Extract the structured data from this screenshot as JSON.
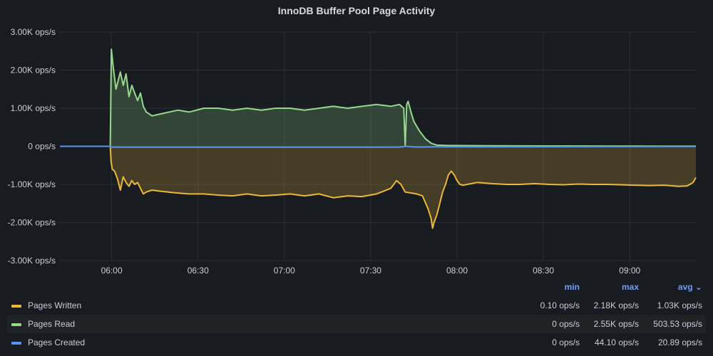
{
  "panel": {
    "title": "InnoDB Buffer Pool Page Activity"
  },
  "chart_data": {
    "type": "area",
    "title": "InnoDB Buffer Pool Page Activity",
    "y_ticks": [
      "3.00K ops/s",
      "2.00K ops/s",
      "1.00K ops/s",
      "0 ops/s",
      "-1.00K ops/s",
      "-2.00K ops/s",
      "-3.00K ops/s"
    ],
    "x_ticks": [
      "06:00",
      "06:30",
      "07:00",
      "07:30",
      "08:00",
      "08:30",
      "09:00"
    ],
    "ylim": [
      -3000,
      3000
    ],
    "x_unit": "minutes after 05:42",
    "xlim": [
      0,
      221
    ],
    "grid": true,
    "series": [
      {
        "name": "Pages Read",
        "color": "#96d98d",
        "sign": 1,
        "points": [
          [
            0,
            0
          ],
          [
            17.5,
            0
          ],
          [
            17.9,
            2550
          ],
          [
            18.5,
            2100
          ],
          [
            19.5,
            1500
          ],
          [
            20.5,
            1800
          ],
          [
            21,
            1950
          ],
          [
            22,
            1600
          ],
          [
            23,
            1900
          ],
          [
            24,
            1300
          ],
          [
            25,
            1600
          ],
          [
            26,
            1400
          ],
          [
            27,
            1200
          ],
          [
            28,
            1400
          ],
          [
            29,
            1050
          ],
          [
            30,
            900
          ],
          [
            32,
            800
          ],
          [
            35,
            850
          ],
          [
            38,
            900
          ],
          [
            41,
            950
          ],
          [
            45,
            900
          ],
          [
            50,
            1000
          ],
          [
            55,
            1000
          ],
          [
            60,
            950
          ],
          [
            65,
            1000
          ],
          [
            70,
            950
          ],
          [
            75,
            1000
          ],
          [
            80,
            1000
          ],
          [
            85,
            950
          ],
          [
            90,
            1000
          ],
          [
            95,
            1050
          ],
          [
            100,
            1000
          ],
          [
            105,
            1050
          ],
          [
            110,
            1100
          ],
          [
            115,
            1050
          ],
          [
            118,
            1100
          ],
          [
            119.5,
            1000
          ],
          [
            120,
            0
          ],
          [
            120.5,
            1100
          ],
          [
            121,
            1180
          ],
          [
            122,
            900
          ],
          [
            123,
            650
          ],
          [
            125,
            400
          ],
          [
            127,
            200
          ],
          [
            129,
            80
          ],
          [
            131,
            30
          ],
          [
            135,
            20
          ],
          [
            150,
            15
          ],
          [
            170,
            10
          ],
          [
            190,
            8
          ],
          [
            210,
            5
          ],
          [
            221,
            5
          ]
        ]
      },
      {
        "name": "Pages Written",
        "color": "#eab839",
        "sign": -1,
        "points": [
          [
            0,
            0
          ],
          [
            17.5,
            0
          ],
          [
            17.8,
            400
          ],
          [
            18.2,
            600
          ],
          [
            19,
            650
          ],
          [
            20,
            850
          ],
          [
            21,
            1150
          ],
          [
            22,
            800
          ],
          [
            23,
            950
          ],
          [
            24,
            1050
          ],
          [
            25,
            900
          ],
          [
            26,
            1000
          ],
          [
            27,
            950
          ],
          [
            28,
            1100
          ],
          [
            29,
            1250
          ],
          [
            30,
            1200
          ],
          [
            32,
            1150
          ],
          [
            35,
            1180
          ],
          [
            40,
            1220
          ],
          [
            45,
            1250
          ],
          [
            50,
            1250
          ],
          [
            55,
            1280
          ],
          [
            60,
            1300
          ],
          [
            65,
            1250
          ],
          [
            70,
            1300
          ],
          [
            75,
            1280
          ],
          [
            80,
            1250
          ],
          [
            85,
            1300
          ],
          [
            90,
            1250
          ],
          [
            95,
            1350
          ],
          [
            100,
            1300
          ],
          [
            105,
            1320
          ],
          [
            110,
            1250
          ],
          [
            115,
            1100
          ],
          [
            117,
            900
          ],
          [
            118.5,
            1000
          ],
          [
            120,
            1200
          ],
          [
            124,
            1250
          ],
          [
            126,
            1300
          ],
          [
            128,
            1650
          ],
          [
            129,
            1900
          ],
          [
            129.5,
            2150
          ],
          [
            130,
            2000
          ],
          [
            131,
            1800
          ],
          [
            132,
            1500
          ],
          [
            133,
            1200
          ],
          [
            134,
            1000
          ],
          [
            135,
            750
          ],
          [
            136,
            650
          ],
          [
            137,
            750
          ],
          [
            138,
            900
          ],
          [
            139,
            1000
          ],
          [
            140,
            1020
          ],
          [
            145,
            950
          ],
          [
            150,
            980
          ],
          [
            155,
            1000
          ],
          [
            160,
            1000
          ],
          [
            165,
            980
          ],
          [
            170,
            1000
          ],
          [
            175,
            1010
          ],
          [
            180,
            990
          ],
          [
            185,
            1000
          ],
          [
            190,
            1000
          ],
          [
            195,
            1010
          ],
          [
            200,
            1020
          ],
          [
            205,
            1030
          ],
          [
            210,
            1020
          ],
          [
            215,
            1050
          ],
          [
            218,
            1040
          ],
          [
            220,
            950
          ],
          [
            221,
            820
          ]
        ]
      },
      {
        "name": "Pages Created",
        "color": "#5794f2",
        "sign": 1,
        "points": [
          [
            0,
            0
          ],
          [
            17.5,
            0
          ],
          [
            18,
            -20
          ],
          [
            30,
            -25
          ],
          [
            60,
            -25
          ],
          [
            90,
            -25
          ],
          [
            118,
            -20
          ],
          [
            120,
            0
          ],
          [
            124,
            -20
          ],
          [
            130,
            -15
          ],
          [
            150,
            -15
          ],
          [
            180,
            -10
          ],
          [
            210,
            -5
          ],
          [
            221,
            -5
          ]
        ]
      }
    ]
  },
  "legend": {
    "headers": {
      "min": "min",
      "max": "max",
      "avg": "avg ⌄"
    },
    "rows": [
      {
        "name": "Pages Written",
        "color": "#eab839",
        "min": "0.10 ops/s",
        "max": "2.18K ops/s",
        "avg": "1.03K ops/s"
      },
      {
        "name": "Pages Read",
        "color": "#96d98d",
        "min": "0 ops/s",
        "max": "2.55K ops/s",
        "avg": "503.53 ops/s"
      },
      {
        "name": "Pages Created",
        "color": "#5794f2",
        "min": "0 ops/s",
        "max": "44.10 ops/s",
        "avg": "20.89 ops/s"
      }
    ]
  }
}
